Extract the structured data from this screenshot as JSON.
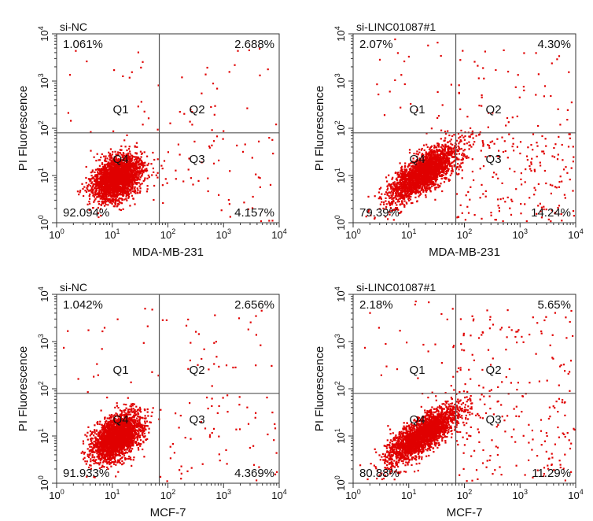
{
  "chart_data": [
    {
      "type": "scatter",
      "title": "si-NC",
      "xlabel": "MDA-MB-231",
      "ylabel": "PI Fluorescence",
      "scale": "log",
      "xlim": [
        1,
        10000
      ],
      "ylim": [
        1,
        10000
      ],
      "gate": {
        "x": 70,
        "y": 80
      },
      "quadrant_labels": [
        "Q1",
        "Q2",
        "Q3",
        "Q4"
      ],
      "quadrant_percent": {
        "Q1": "1.061%",
        "Q2": "2.688%",
        "Q3": "4.157%",
        "Q4": "92.094%"
      },
      "x_ticks": [
        {
          "base": "10",
          "exp": "0"
        },
        {
          "base": "10",
          "exp": "1"
        },
        {
          "base": "10",
          "exp": "2"
        },
        {
          "base": "10",
          "exp": "3"
        },
        {
          "base": "10",
          "exp": "4"
        }
      ],
      "y_ticks": [
        {
          "base": "10",
          "exp": "0"
        },
        {
          "base": "10",
          "exp": "1"
        },
        {
          "base": "10",
          "exp": "2"
        },
        {
          "base": "10",
          "exp": "3"
        },
        {
          "base": "10",
          "exp": "4"
        }
      ],
      "cluster": {
        "center_x": 12,
        "center_y": 9,
        "spread_x": 0.22,
        "spread_y": 0.24,
        "correlation": 0.35
      },
      "point_color": "#e00000"
    },
    {
      "type": "scatter",
      "title": "si-LINC01087#1",
      "xlabel": "MDA-MB-231",
      "ylabel": "PI Fluorescence",
      "scale": "log",
      "xlim": [
        1,
        10000
      ],
      "ylim": [
        1,
        10000
      ],
      "gate": {
        "x": 70,
        "y": 80
      },
      "quadrant_labels": [
        "Q1",
        "Q2",
        "Q3",
        "Q4"
      ],
      "quadrant_percent": {
        "Q1": "2.07%",
        "Q2": "4.30%",
        "Q3": "14.24%",
        "Q4": "79.39%"
      },
      "x_ticks": [
        {
          "base": "10",
          "exp": "0"
        },
        {
          "base": "10",
          "exp": "1"
        },
        {
          "base": "10",
          "exp": "2"
        },
        {
          "base": "10",
          "exp": "3"
        },
        {
          "base": "10",
          "exp": "4"
        }
      ],
      "y_ticks": [
        {
          "base": "10",
          "exp": "0"
        },
        {
          "base": "10",
          "exp": "1"
        },
        {
          "base": "10",
          "exp": "2"
        },
        {
          "base": "10",
          "exp": "3"
        },
        {
          "base": "10",
          "exp": "4"
        }
      ],
      "cluster": {
        "center_x": 18,
        "center_y": 12,
        "spread_x": 0.3,
        "spread_y": 0.3,
        "correlation": 0.75
      },
      "point_color": "#e00000"
    },
    {
      "type": "scatter",
      "title": "si-NC",
      "xlabel": "MCF-7",
      "ylabel": "PI Fluorescence",
      "scale": "log",
      "xlim": [
        1,
        10000
      ],
      "ylim": [
        1,
        10000
      ],
      "gate": {
        "x": 70,
        "y": 80
      },
      "quadrant_labels": [
        "Q1",
        "Q2",
        "Q3",
        "Q4"
      ],
      "quadrant_percent": {
        "Q1": "1.042%",
        "Q2": "2.656%",
        "Q3": "4.369%",
        "Q4": "91.933%"
      },
      "x_ticks": [
        {
          "base": "10",
          "exp": "0"
        },
        {
          "base": "10",
          "exp": "1"
        },
        {
          "base": "10",
          "exp": "2"
        },
        {
          "base": "10",
          "exp": "3"
        },
        {
          "base": "10",
          "exp": "4"
        }
      ],
      "y_ticks": [
        {
          "base": "10",
          "exp": "0"
        },
        {
          "base": "10",
          "exp": "1"
        },
        {
          "base": "10",
          "exp": "2"
        },
        {
          "base": "10",
          "exp": "3"
        },
        {
          "base": "10",
          "exp": "4"
        }
      ],
      "cluster": {
        "center_x": 12,
        "center_y": 10,
        "spread_x": 0.22,
        "spread_y": 0.25,
        "correlation": 0.45
      },
      "point_color": "#e00000"
    },
    {
      "type": "scatter",
      "title": "si-LINC01087#1",
      "xlabel": "MCF-7",
      "ylabel": "PI Fluorescence",
      "scale": "log",
      "xlim": [
        1,
        10000
      ],
      "ylim": [
        1,
        10000
      ],
      "gate": {
        "x": 70,
        "y": 80
      },
      "quadrant_labels": [
        "Q1",
        "Q2",
        "Q3",
        "Q4"
      ],
      "quadrant_percent": {
        "Q1": "2.18%",
        "Q2": "5.65%",
        "Q3": "11.29%",
        "Q4": "80.88%"
      },
      "x_ticks": [
        {
          "base": "10",
          "exp": "0"
        },
        {
          "base": "10",
          "exp": "1"
        },
        {
          "base": "10",
          "exp": "2"
        },
        {
          "base": "10",
          "exp": "3"
        },
        {
          "base": "10",
          "exp": "4"
        }
      ],
      "y_ticks": [
        {
          "base": "10",
          "exp": "0"
        },
        {
          "base": "10",
          "exp": "1"
        },
        {
          "base": "10",
          "exp": "2"
        },
        {
          "base": "10",
          "exp": "3"
        },
        {
          "base": "10",
          "exp": "4"
        }
      ],
      "cluster": {
        "center_x": 17,
        "center_y": 11,
        "spread_x": 0.32,
        "spread_y": 0.3,
        "correlation": 0.78
      },
      "point_color": "#e00000"
    }
  ]
}
